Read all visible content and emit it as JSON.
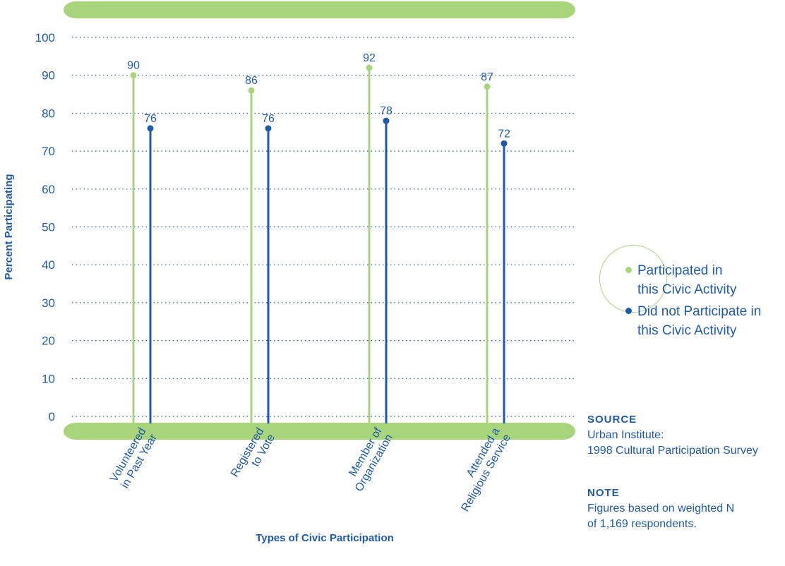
{
  "chart_data": {
    "type": "lollipop",
    "categories": [
      [
        "Volunteered",
        "in Past Year"
      ],
      [
        "Registered",
        "to Vote"
      ],
      [
        "Member of",
        "Organization"
      ],
      [
        "Attended a",
        "Religious Service"
      ]
    ],
    "series": [
      {
        "name": "Participated in this Civic Activity",
        "values": [
          90,
          86,
          92,
          87
        ],
        "color": "#a8d57c"
      },
      {
        "name": "Did not Participate in this Civic Activity",
        "values": [
          76,
          76,
          78,
          72
        ],
        "color": "#1e5aa8"
      }
    ],
    "ylabel": "Percent Participating",
    "xlabel": "Types of Civic Participation",
    "ylim": [
      0,
      100
    ],
    "yticks": [
      0,
      10,
      20,
      30,
      40,
      50,
      60,
      70,
      80,
      90,
      100
    ],
    "grid": "dotted-horizontal",
    "legend_position": "right"
  },
  "legend": {
    "items": [
      {
        "line1": "Participated in",
        "line2": "this Civic Activity",
        "color": "#a8d57c"
      },
      {
        "line1": "Did not Participate in",
        "line2": "this Civic Activity",
        "color": "#1e5aa8"
      }
    ]
  },
  "source": {
    "heading": "SOURCE",
    "line1": "Urban Institute:",
    "line2": "1998 Cultural Participation Survey"
  },
  "note": {
    "heading": "NOTE",
    "line1": "Figures based on weighted N",
    "line2": "of 1,169 respondents."
  },
  "colors": {
    "accent_green": "#a8d57c",
    "accent_blue": "#1e5aa8"
  }
}
